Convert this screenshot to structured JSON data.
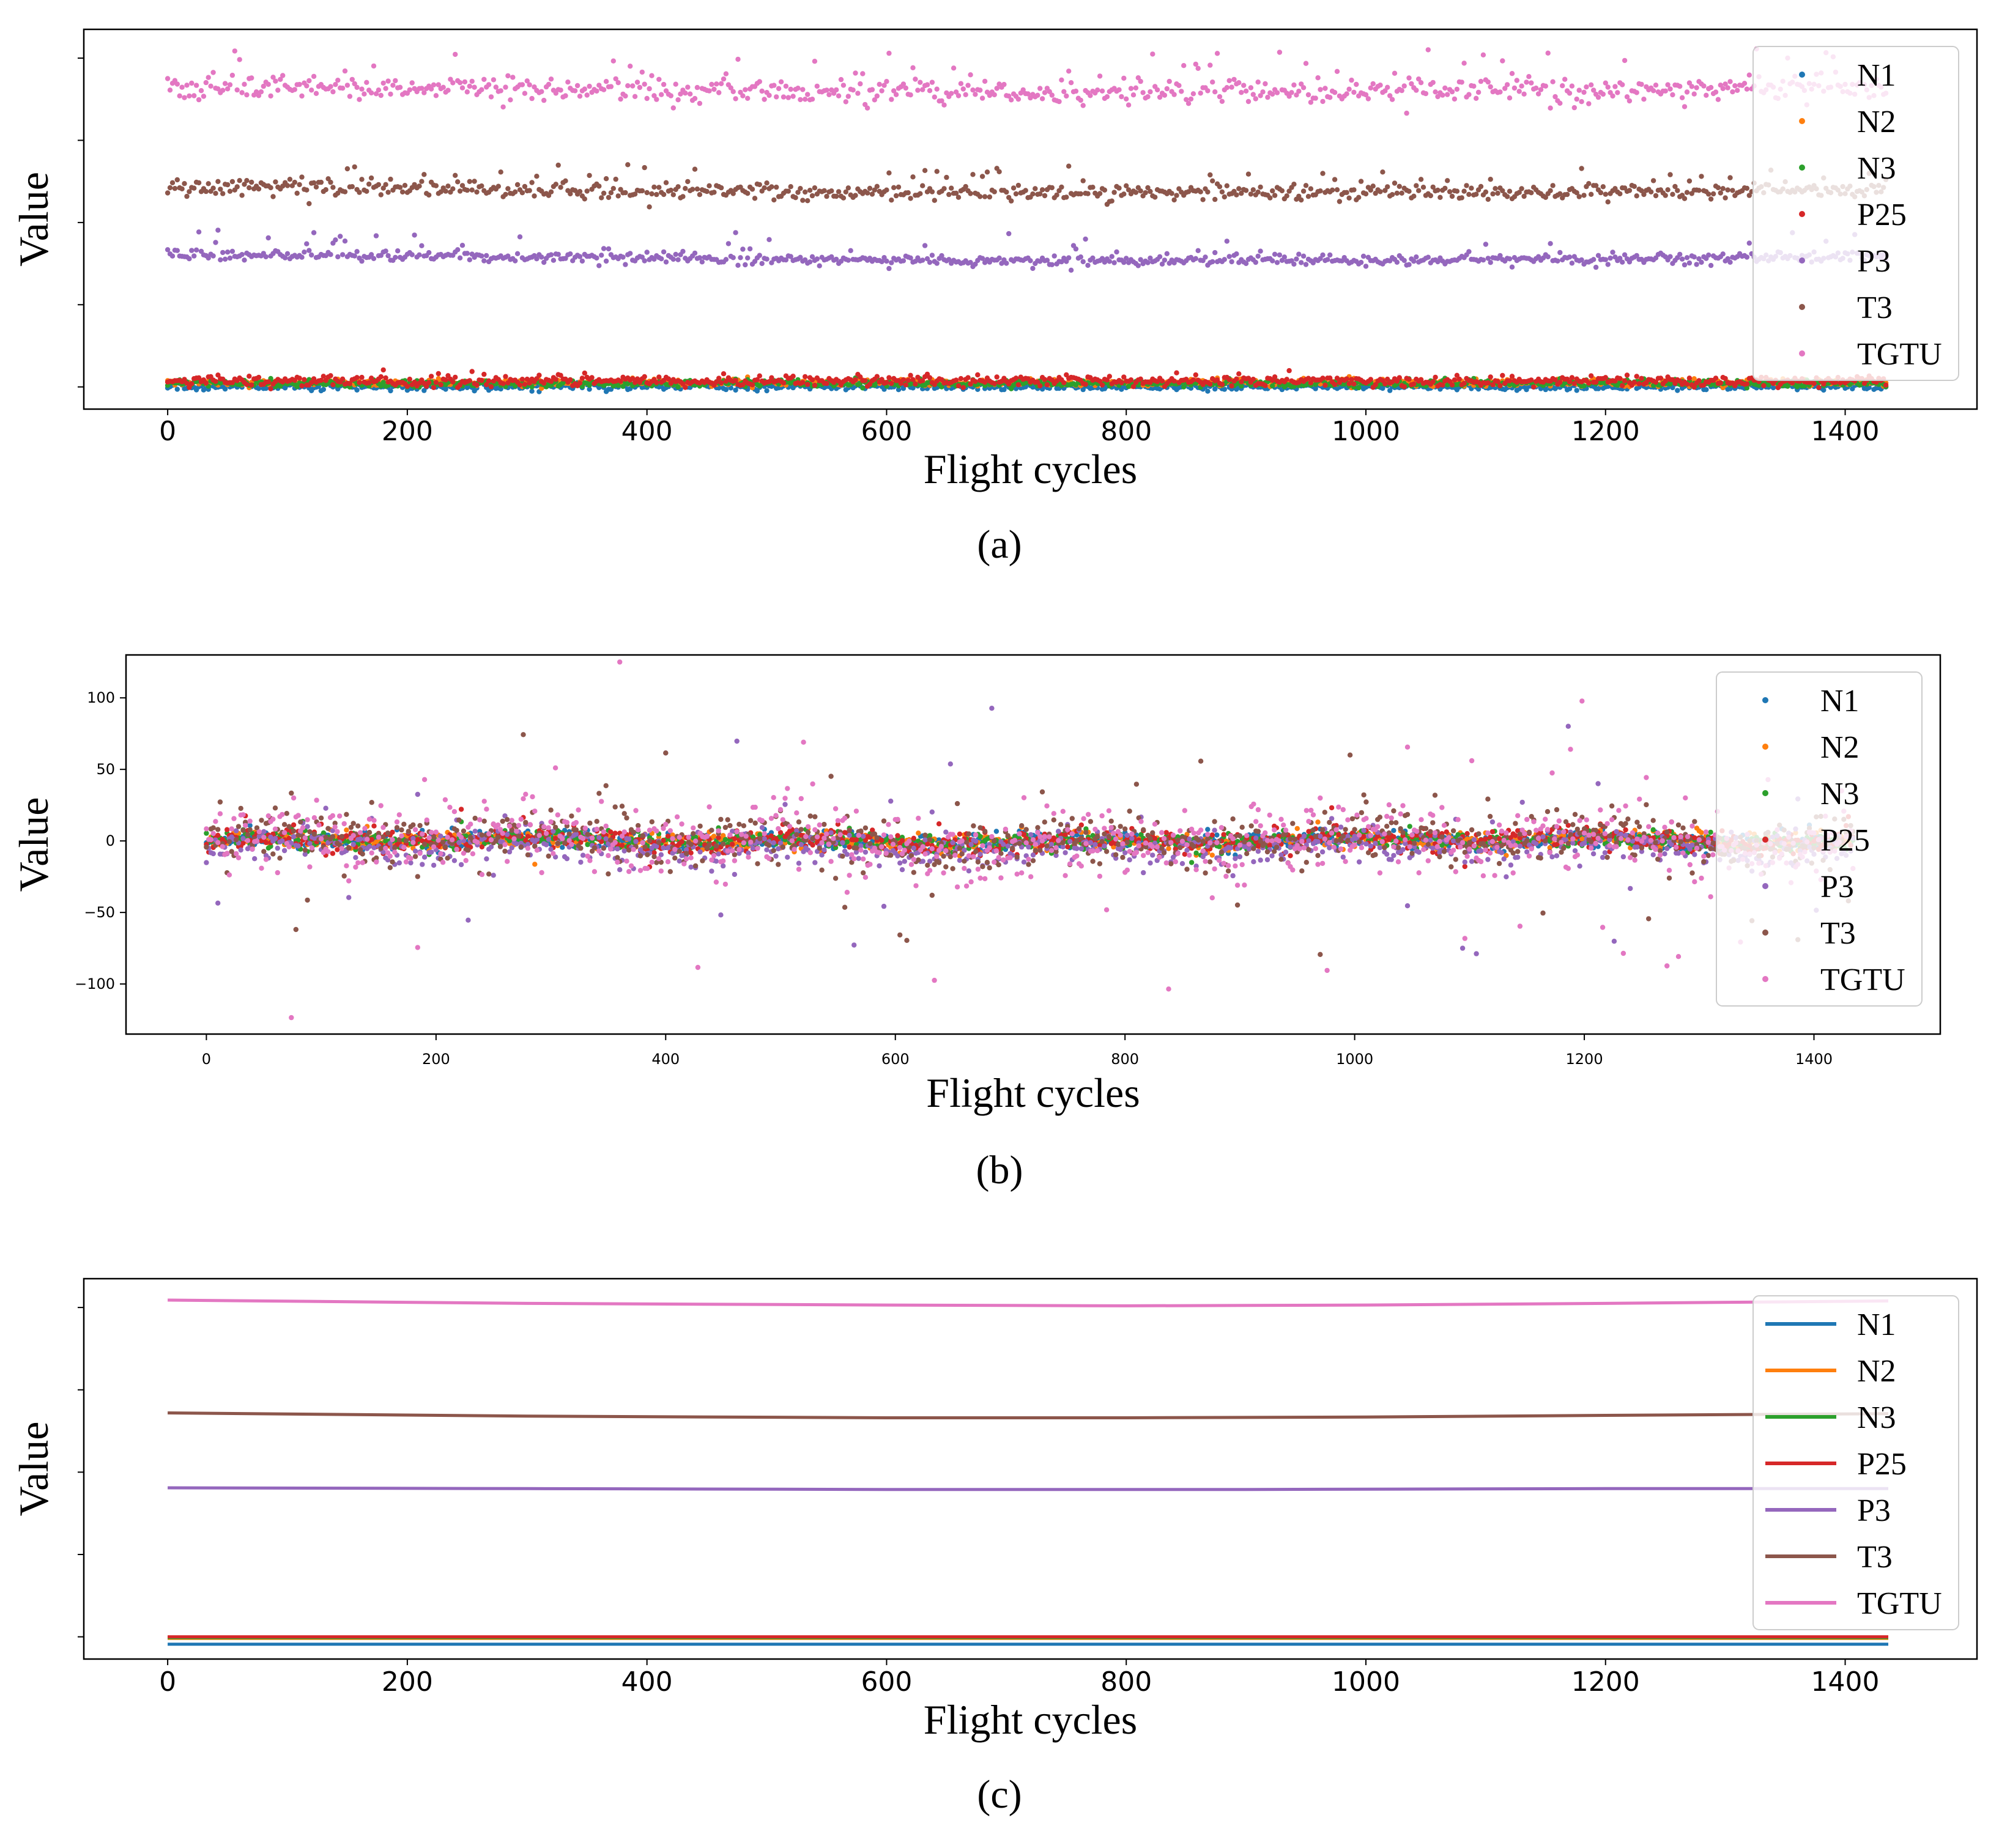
{
  "figure": {
    "captions": [
      "(a)",
      "(b)",
      "(c)"
    ]
  },
  "legend_entries": [
    "N1",
    "N2",
    "N3",
    "P25",
    "P3",
    "T3",
    "TGTU"
  ],
  "series_colors": {
    "N1": "#1f77b4",
    "N2": "#ff7f0e",
    "N3": "#2ca02c",
    "P25": "#d62728",
    "P3": "#9467bd",
    "T3": "#8c564b",
    "TGTU": "#e377c2"
  },
  "chart_data": [
    {
      "id": "a",
      "type": "scatter",
      "caption": "(a)",
      "xlabel": "Flight cycles",
      "ylabel": "Value",
      "xlim": [
        -70,
        1510
      ],
      "ylim": [
        -0.27,
        4.35
      ],
      "xticks": [
        0,
        200,
        400,
        600,
        800,
        1000,
        1200,
        1400
      ],
      "yticks": [
        0,
        1,
        2,
        3,
        4
      ],
      "yticks_labeled": false,
      "n_points": 1436,
      "legend": "top-right",
      "series": [
        {
          "name": "N1",
          "baseline": 0.0,
          "noise": 0.02,
          "outlier_amp": 0.04
        },
        {
          "name": "N2",
          "baseline": 0.05,
          "noise": 0.02,
          "outlier_amp": 0.05
        },
        {
          "name": "N3",
          "baseline": 0.04,
          "noise": 0.02,
          "outlier_amp": 0.05
        },
        {
          "name": "P25",
          "baseline": 0.07,
          "noise": 0.03,
          "outlier_amp": 0.09
        },
        {
          "name": "P3",
          "baseline": 1.6,
          "noise": 0.03,
          "outlier_amp": 0.3
        },
        {
          "name": "T3",
          "baseline": 2.42,
          "noise": 0.05,
          "outlier_amp": 0.28
        },
        {
          "name": "TGTU",
          "baseline": 3.65,
          "noise": 0.07,
          "outlier_amp": 0.45
        }
      ]
    },
    {
      "id": "b",
      "type": "scatter",
      "caption": "(b)",
      "xlabel": "Flight cycles",
      "ylabel": "Value",
      "xlim": [
        -70,
        1510
      ],
      "ylim": [
        -135,
        130
      ],
      "xticks": [
        0,
        200,
        400,
        600,
        800,
        1000,
        1200,
        1400
      ],
      "yticks": [
        -100,
        -50,
        0,
        50,
        100
      ],
      "ytick_labels": [
        "−100",
        "−50",
        "0",
        "50",
        "100"
      ],
      "n_points": 1436,
      "legend": "top-right",
      "series": [
        {
          "name": "N1",
          "noise": 3,
          "outlier_amp": 8
        },
        {
          "name": "N2",
          "noise": 3,
          "outlier_amp": 8
        },
        {
          "name": "N3",
          "noise": 3,
          "outlier_amp": 9
        },
        {
          "name": "P25",
          "noise": 4,
          "outlier_amp": 14
        },
        {
          "name": "P3",
          "noise": 6,
          "outlier_amp": 80
        },
        {
          "name": "T3",
          "noise": 9,
          "outlier_amp": 60
        },
        {
          "name": "TGTU",
          "noise": 12,
          "outlier_amp": 115
        }
      ]
    },
    {
      "id": "c",
      "type": "line",
      "caption": "(c)",
      "xlabel": "Flight cycles",
      "ylabel": "Value",
      "xlim": [
        -70,
        1510
      ],
      "ylim": [
        -0.27,
        4.35
      ],
      "xticks": [
        0,
        200,
        400,
        600,
        800,
        1000,
        1200,
        1400
      ],
      "yticks": [
        0,
        1,
        2,
        3,
        4
      ],
      "yticks_labeled": false,
      "legend": "top-right",
      "series": [
        {
          "name": "N1",
          "x": [
            0,
            1436
          ],
          "y": [
            -0.09,
            -0.09
          ]
        },
        {
          "name": "N2",
          "x": [
            0,
            1436
          ],
          "y": [
            -0.02,
            -0.02
          ]
        },
        {
          "name": "N3",
          "x": [
            0,
            1436
          ],
          "y": [
            -0.01,
            -0.01
          ]
        },
        {
          "name": "P25",
          "x": [
            0,
            1436
          ],
          "y": [
            0.0,
            0.0
          ]
        },
        {
          "name": "P3",
          "x": [
            0,
            300,
            600,
            900,
            1200,
            1436
          ],
          "y": [
            1.81,
            1.8,
            1.79,
            1.79,
            1.8,
            1.8
          ]
        },
        {
          "name": "T3",
          "x": [
            0,
            300,
            600,
            800,
            1000,
            1200,
            1436
          ],
          "y": [
            2.72,
            2.68,
            2.66,
            2.66,
            2.67,
            2.69,
            2.71
          ]
        },
        {
          "name": "TGTU",
          "x": [
            0,
            300,
            600,
            800,
            1000,
            1200,
            1436
          ],
          "y": [
            4.09,
            4.05,
            4.03,
            4.02,
            4.03,
            4.05,
            4.08
          ]
        }
      ]
    }
  ]
}
